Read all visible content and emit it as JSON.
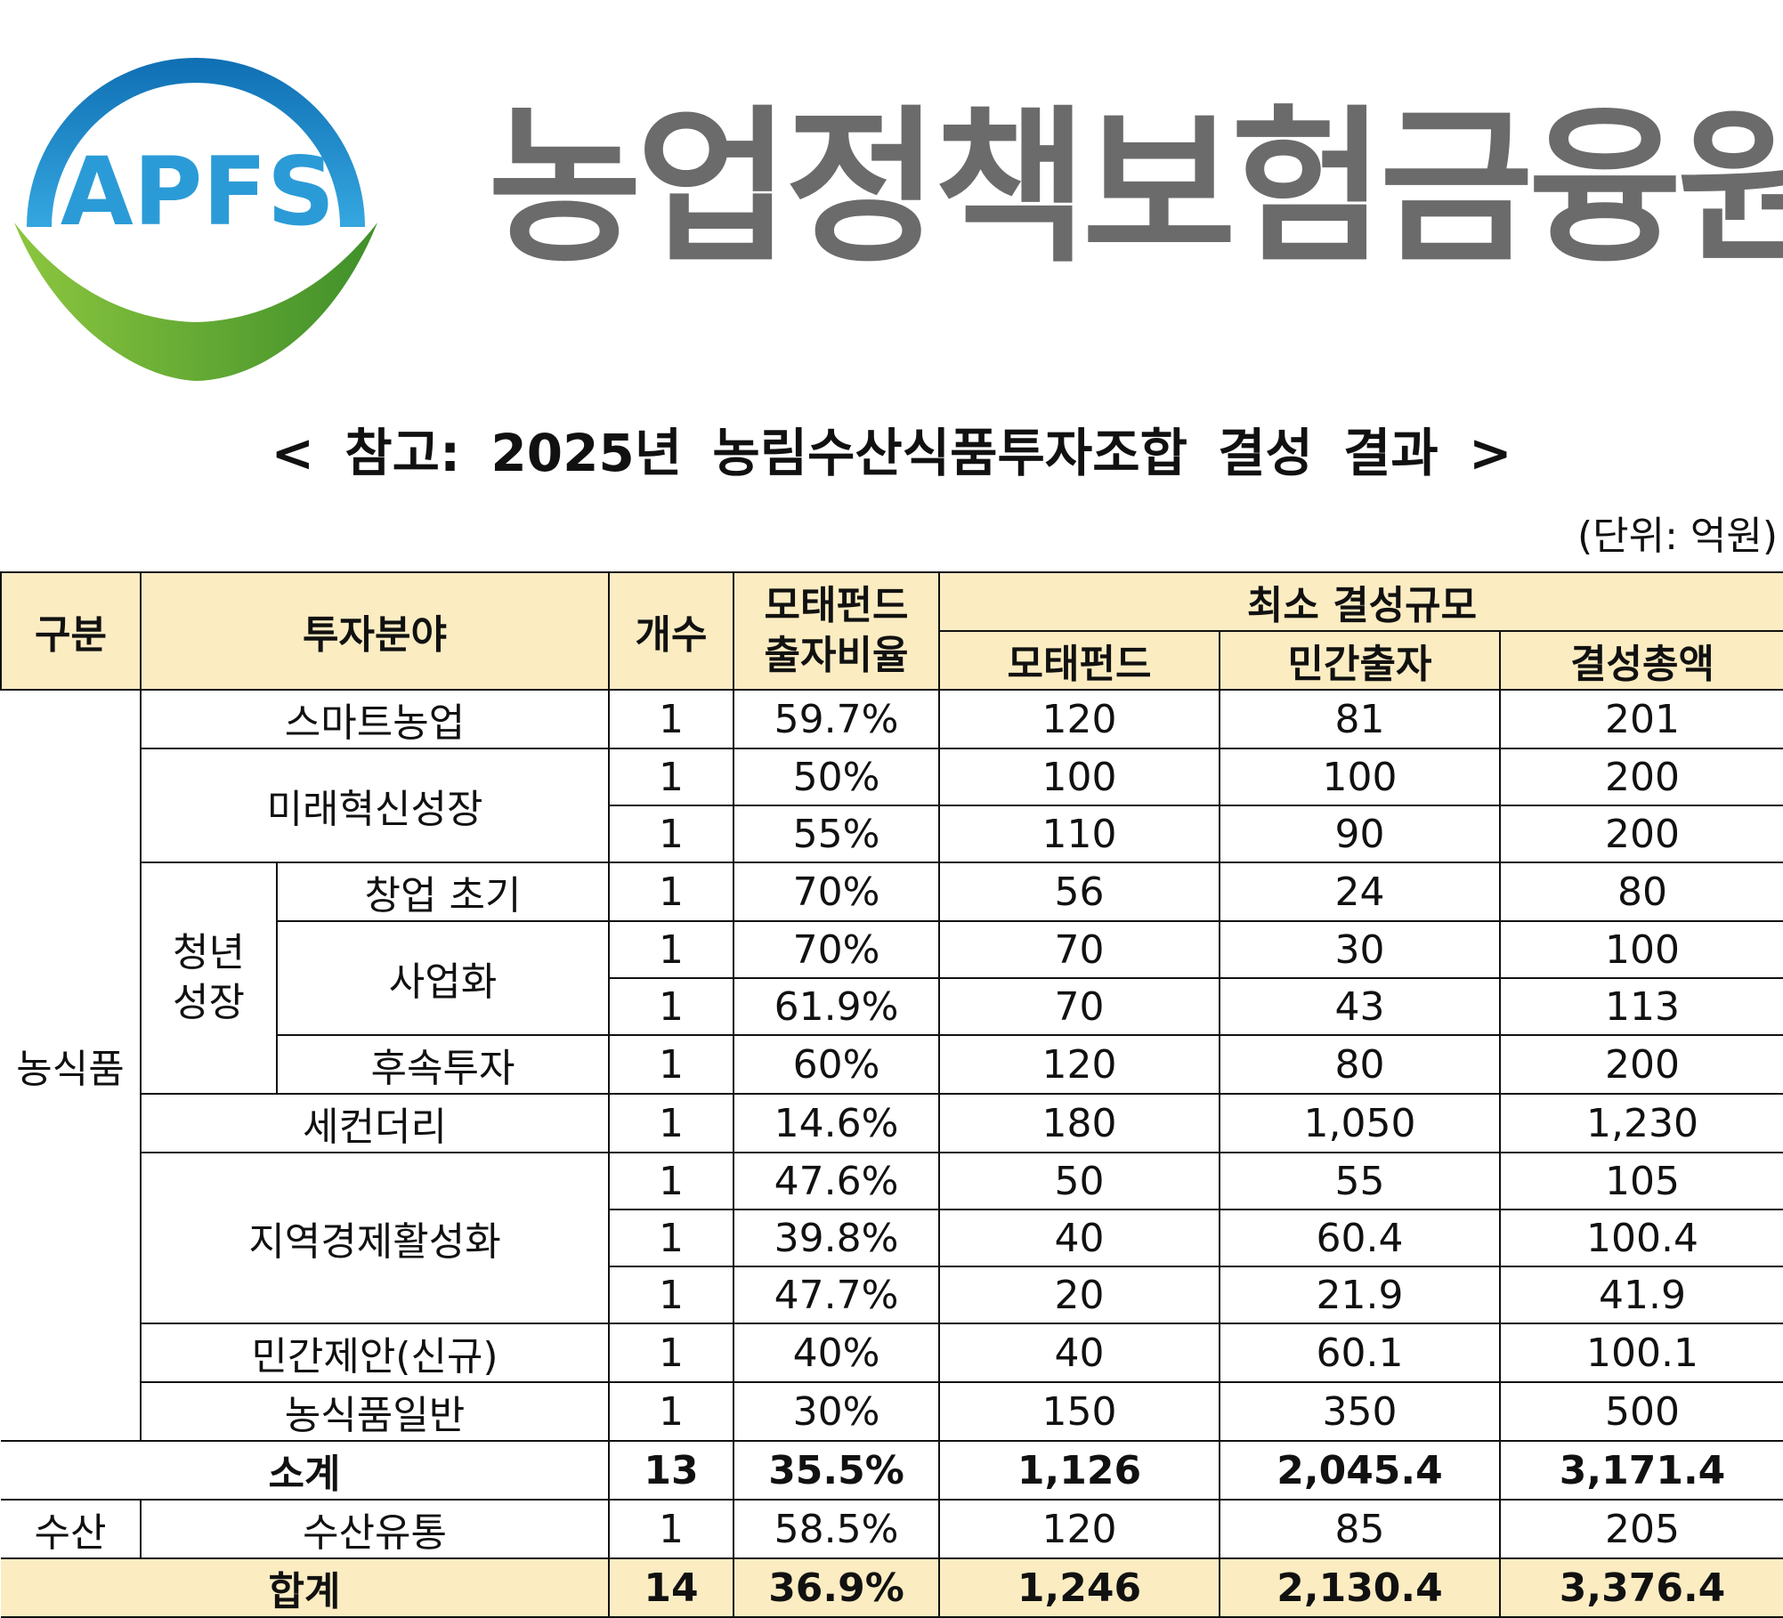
{
  "header": {
    "logo_text": "APFS",
    "org_name": "농업정책보험금융원"
  },
  "title": "< 참고: 2025년 농림수산식품투자조합 결성 결과 >",
  "unit": "(단위: 억원)",
  "table": {
    "headers": {
      "category": "구분",
      "field": "투자분야",
      "count": "개수",
      "ratio_line1": "모태펀드",
      "ratio_line2": "출자비율",
      "min_scale": "최소 결성규모",
      "mother_fund": "모태펀드",
      "private": "민간출자",
      "total": "결성총액"
    },
    "groups": {
      "agrifood": "농식품",
      "youth_line1": "청년",
      "youth_line2": "성장",
      "fisheries": "수산"
    },
    "rows": [
      {
        "field": "스마트농업",
        "count": "1",
        "ratio": "59.7%",
        "mother": "120",
        "private": "81",
        "total": "201"
      },
      {
        "field": "미래혁신성장",
        "count": "1",
        "ratio": "50%",
        "mother": "100",
        "private": "100",
        "total": "200"
      },
      {
        "field": "",
        "count": "1",
        "ratio": "55%",
        "mother": "110",
        "private": "90",
        "total": "200"
      },
      {
        "field": "창업 초기",
        "count": "1",
        "ratio": "70%",
        "mother": "56",
        "private": "24",
        "total": "80"
      },
      {
        "field": "사업화",
        "count": "1",
        "ratio": "70%",
        "mother": "70",
        "private": "30",
        "total": "100"
      },
      {
        "field": "",
        "count": "1",
        "ratio": "61.9%",
        "mother": "70",
        "private": "43",
        "total": "113"
      },
      {
        "field": "후속투자",
        "count": "1",
        "ratio": "60%",
        "mother": "120",
        "private": "80",
        "total": "200"
      },
      {
        "field": "세컨더리",
        "count": "1",
        "ratio": "14.6%",
        "mother": "180",
        "private": "1,050",
        "total": "1,230"
      },
      {
        "field": "지역경제활성화",
        "count": "1",
        "ratio": "47.6%",
        "mother": "50",
        "private": "55",
        "total": "105"
      },
      {
        "field": "",
        "count": "1",
        "ratio": "39.8%",
        "mother": "40",
        "private": "60.4",
        "total": "100.4"
      },
      {
        "field": "",
        "count": "1",
        "ratio": "47.7%",
        "mother": "20",
        "private": "21.9",
        "total": "41.9"
      },
      {
        "field": "민간제안(신규)",
        "count": "1",
        "ratio": "40%",
        "mother": "40",
        "private": "60.1",
        "total": "100.1"
      },
      {
        "field": "농식품일반",
        "count": "1",
        "ratio": "30%",
        "mother": "150",
        "private": "350",
        "total": "500"
      }
    ],
    "subtotal": {
      "label": "소계",
      "count": "13",
      "ratio": "35.5%",
      "mother": "1,126",
      "private": "2,045.4",
      "total": "3,171.4"
    },
    "fisheries_row": {
      "field": "수산유통",
      "count": "1",
      "ratio": "58.5%",
      "mother": "120",
      "private": "85",
      "total": "205"
    },
    "grand_total": {
      "label": "합계",
      "count": "14",
      "ratio": "36.9%",
      "mother": "1,246",
      "private": "2,130.4",
      "total": "3,376.4"
    }
  },
  "colors": {
    "header_fill": "#fbecc2",
    "logo_blue": "#1e88c9",
    "logo_green": "#5aa832",
    "org_text": "#6b6b6b"
  }
}
